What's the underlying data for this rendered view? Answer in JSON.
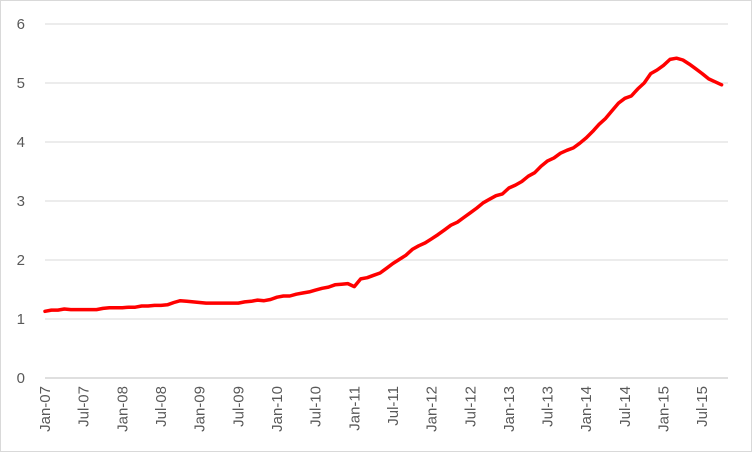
{
  "chart_data": {
    "type": "line",
    "title": "",
    "xlabel": "",
    "ylabel": "",
    "ylim": [
      0,
      6
    ],
    "yticks": [
      "0",
      "1",
      "2",
      "3",
      "4",
      "5",
      "6"
    ],
    "grid": true,
    "legend": "none",
    "series_color": "#ff0000",
    "xtick_labels": [
      "Jan-07",
      "Jul-07",
      "Jan-08",
      "Jul-08",
      "Jan-09",
      "Jul-09",
      "Jan-10",
      "Jul-10",
      "Jan-11",
      "Jul-11",
      "Jan-12",
      "Jul-12",
      "Jan-13",
      "Jul-13",
      "Jan-14",
      "Jul-14",
      "Jan-15",
      "Jul-15"
    ],
    "x": [
      "2007-01",
      "2007-02",
      "2007-03",
      "2007-04",
      "2007-05",
      "2007-06",
      "2007-07",
      "2007-08",
      "2007-09",
      "2007-10",
      "2007-11",
      "2007-12",
      "2008-01",
      "2008-02",
      "2008-03",
      "2008-04",
      "2008-05",
      "2008-06",
      "2008-07",
      "2008-08",
      "2008-09",
      "2008-10",
      "2008-11",
      "2008-12",
      "2009-01",
      "2009-02",
      "2009-03",
      "2009-04",
      "2009-05",
      "2009-06",
      "2009-07",
      "2009-08",
      "2009-09",
      "2009-10",
      "2009-11",
      "2009-12",
      "2010-01",
      "2010-02",
      "2010-03",
      "2010-04",
      "2010-05",
      "2010-06",
      "2010-07",
      "2010-08",
      "2010-09",
      "2010-10",
      "2010-11",
      "2010-12",
      "2011-01",
      "2011-02",
      "2011-03",
      "2011-04",
      "2011-05",
      "2011-06",
      "2011-07",
      "2011-08",
      "2011-09",
      "2011-10",
      "2011-11",
      "2011-12",
      "2012-01",
      "2012-02",
      "2012-03",
      "2012-04",
      "2012-05",
      "2012-06",
      "2012-07",
      "2012-08",
      "2012-09",
      "2012-10",
      "2012-11",
      "2012-12",
      "2013-01",
      "2013-02",
      "2013-03",
      "2013-04",
      "2013-05",
      "2013-06",
      "2013-07",
      "2013-08",
      "2013-09",
      "2013-10",
      "2013-11",
      "2013-12",
      "2014-01",
      "2014-02",
      "2014-03",
      "2014-04",
      "2014-05",
      "2014-06",
      "2014-07",
      "2014-08",
      "2014-09",
      "2014-10",
      "2014-11",
      "2014-12",
      "2015-01",
      "2015-02",
      "2015-03",
      "2015-04",
      "2015-05",
      "2015-06",
      "2015-07",
      "2015-08",
      "2015-09",
      "2015-10"
    ],
    "values": [
      1.13,
      1.15,
      1.15,
      1.17,
      1.16,
      1.16,
      1.16,
      1.16,
      1.16,
      1.18,
      1.19,
      1.19,
      1.19,
      1.2,
      1.2,
      1.22,
      1.22,
      1.23,
      1.23,
      1.24,
      1.28,
      1.31,
      1.3,
      1.29,
      1.28,
      1.27,
      1.27,
      1.27,
      1.27,
      1.27,
      1.27,
      1.29,
      1.3,
      1.32,
      1.31,
      1.33,
      1.37,
      1.39,
      1.39,
      1.42,
      1.44,
      1.46,
      1.49,
      1.52,
      1.54,
      1.58,
      1.59,
      1.6,
      1.55,
      1.68,
      1.7,
      1.74,
      1.78,
      1.86,
      1.94,
      2.01,
      2.08,
      2.18,
      2.24,
      2.29,
      2.36,
      2.43,
      2.51,
      2.59,
      2.64,
      2.72,
      2.8,
      2.88,
      2.97,
      3.03,
      3.09,
      3.12,
      3.22,
      3.27,
      3.33,
      3.42,
      3.48,
      3.59,
      3.68,
      3.73,
      3.81,
      3.86,
      3.9,
      3.98,
      4.07,
      4.18,
      4.3,
      4.4,
      4.53,
      4.66,
      4.74,
      4.78,
      4.9,
      5.0,
      5.16,
      5.22,
      5.3,
      5.4,
      5.42,
      5.39,
      5.32,
      5.24,
      5.16,
      5.07,
      5.02,
      4.97
    ]
  }
}
